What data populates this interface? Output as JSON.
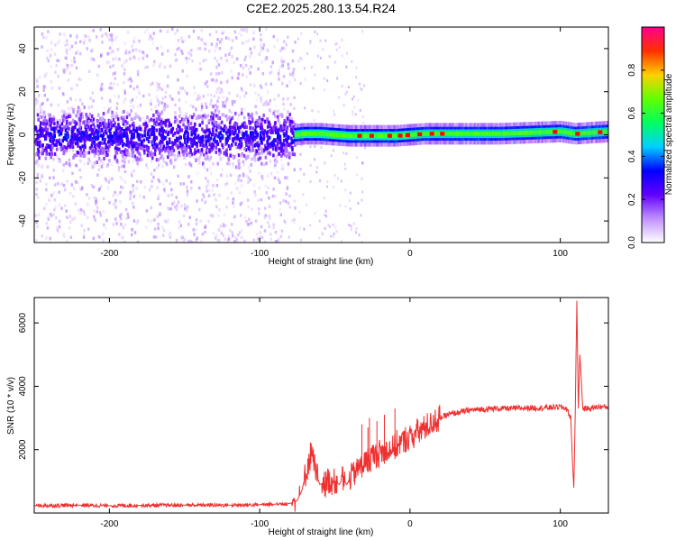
{
  "title": "C2E2.2025.280.13.54.R24",
  "chart_data": [
    {
      "type": "heatmap",
      "title": "C2E2.2025.280.13.54.R24",
      "xlabel": "Height of straight line (km)",
      "ylabel": "Frequency (Hz)",
      "xlim": [
        -250,
        132
      ],
      "ylim": [
        -50,
        50
      ],
      "x_ticks": [
        -200,
        -100,
        0,
        100
      ],
      "y_ticks": [
        -40,
        -20,
        0,
        20,
        40
      ],
      "grid": false,
      "noise_region_x": [
        -250,
        -77
      ],
      "signal_band_hz": [
        -3,
        3
      ],
      "ridge": {
        "x": [
          -77,
          -70,
          -60,
          -50,
          -40,
          -30,
          -20,
          -10,
          0,
          10,
          20,
          40,
          60,
          80,
          100,
          110,
          120,
          132
        ],
        "freq_hz": [
          0,
          0.5,
          0.5,
          0,
          -0.5,
          -0.5,
          -0.5,
          -0.5,
          0,
          0.5,
          0.5,
          0.5,
          0.5,
          1,
          1.5,
          0.5,
          1,
          1.5
        ]
      },
      "colorbar": {
        "label": "Normalized spectral amplitude",
        "range": [
          0,
          1
        ],
        "ticks": [
          0.0,
          0.2,
          0.4,
          0.6,
          0.8
        ],
        "colormap": [
          "#ffffff",
          "#c090ff",
          "#6000ff",
          "#0000ff",
          "#00d0ff",
          "#00ff60",
          "#60ff00",
          "#ffd000",
          "#ff3000",
          "#ff0090"
        ]
      },
      "colors": {
        "noise": "#8a2be2",
        "core": "#4000ff",
        "peak": "#ff0000"
      }
    },
    {
      "type": "line",
      "xlabel": "Height of straight line (km)",
      "ylabel": "SNR (10 * v/v)",
      "xlim": [
        -250,
        132
      ],
      "ylim": [
        0,
        6800
      ],
      "x_ticks": [
        -200,
        -100,
        0,
        100
      ],
      "y_ticks": [
        2000,
        4000,
        6000
      ],
      "grid": false,
      "series": [
        {
          "color": "#f03030",
          "x": [
            -250,
            -220,
            -200,
            -180,
            -150,
            -120,
            -100,
            -90,
            -80,
            -75,
            -72,
            -70,
            -67,
            -65,
            -63,
            -60,
            -55,
            -50,
            -47,
            -45,
            -42,
            -40,
            -35,
            -30,
            -25,
            -20,
            -15,
            -10,
            -5,
            0,
            5,
            10,
            15,
            20,
            25,
            30,
            40,
            50,
            60,
            70,
            80,
            90,
            100,
            104,
            107,
            108,
            109,
            110,
            111,
            112,
            113,
            115,
            120,
            125,
            132
          ],
          "y": [
            230,
            250,
            230,
            240,
            250,
            250,
            260,
            280,
            300,
            400,
            700,
            1100,
            1700,
            2000,
            1300,
            900,
            1000,
            1000,
            900,
            1100,
            900,
            1100,
            1400,
            1600,
            1800,
            1900,
            2000,
            2100,
            2250,
            2400,
            2550,
            2700,
            2850,
            3000,
            3100,
            3150,
            3250,
            3280,
            3300,
            3300,
            3320,
            3320,
            3350,
            3300,
            3000,
            1700,
            800,
            3300,
            6700,
            3300,
            5000,
            3300,
            3300,
            3350,
            3350
          ]
        }
      ],
      "spikes": [
        {
          "x": -32,
          "y": 2800
        },
        {
          "x": -27,
          "y": 3000
        },
        {
          "x": -22,
          "y": 2900
        },
        {
          "x": -28,
          "y": 2700
        },
        {
          "x": -17,
          "y": 3100
        },
        {
          "x": -10,
          "y": 3300
        }
      ]
    }
  ]
}
